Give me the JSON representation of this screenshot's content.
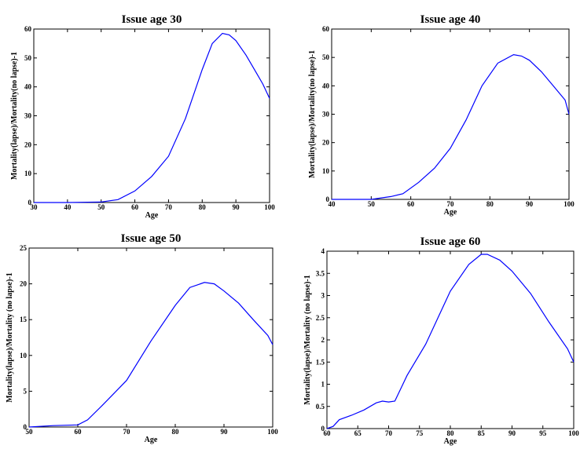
{
  "chart_data": [
    {
      "type": "line",
      "title": "Issue age 30",
      "xlabel": "Age",
      "ylabel": "Mortality(lapse)/Mortality(no lapse)-1",
      "x": [
        30,
        40,
        50,
        55,
        60,
        65,
        70,
        75,
        80,
        83,
        86,
        88,
        90,
        93,
        96,
        98,
        100
      ],
      "values": [
        0,
        0,
        0.2,
        1,
        4,
        9,
        16,
        29,
        46,
        55,
        58.5,
        58,
        56,
        51,
        45,
        41,
        36
      ],
      "color": "#0000ff",
      "xlim": [
        30,
        100
      ],
      "xticks": [
        30,
        40,
        50,
        60,
        70,
        80,
        90,
        100
      ],
      "ylim": [
        0,
        60
      ],
      "yticks": [
        0,
        10,
        20,
        30,
        40,
        50,
        60
      ]
    },
    {
      "type": "line",
      "title": "Issue age 40",
      "xlabel": "Age",
      "ylabel": "Mortality(lapse)/Mortality(no lapse)-1",
      "x": [
        40,
        50,
        55,
        58,
        62,
        66,
        70,
        74,
        78,
        82,
        86,
        88,
        90,
        93,
        96,
        99,
        100
      ],
      "values": [
        0,
        0,
        1,
        2,
        6,
        11,
        18,
        28,
        40,
        48,
        51,
        50.5,
        49,
        45,
        40,
        35,
        30
      ],
      "color": "#0000ff",
      "xlim": [
        40,
        100
      ],
      "xticks": [
        40,
        50,
        60,
        70,
        80,
        90,
        100
      ],
      "ylim": [
        0,
        60
      ],
      "yticks": [
        0,
        10,
        20,
        30,
        40,
        50,
        60
      ]
    },
    {
      "type": "line",
      "title": "Issue age 50",
      "xlabel": "Age",
      "ylabel": "Mortality(lapse)/Mortality (no lapse)-1",
      "x": [
        50,
        55,
        60,
        62,
        65,
        70,
        75,
        80,
        83,
        86,
        88,
        90,
        93,
        96,
        99,
        100
      ],
      "values": [
        0,
        0.2,
        0.3,
        1,
        3,
        6.5,
        12,
        17,
        19.5,
        20.2,
        20,
        19,
        17.3,
        15,
        12.8,
        11.5
      ],
      "color": "#0000ff",
      "xlim": [
        50,
        100
      ],
      "xticks": [
        50,
        60,
        70,
        80,
        90,
        100
      ],
      "ylim": [
        0,
        25
      ],
      "yticks": [
        0,
        5,
        10,
        15,
        20,
        25
      ]
    },
    {
      "type": "line",
      "title": "Issue age 60",
      "xlabel": "Age",
      "ylabel": "Mortality(lapse)/Mortality (no lapse)-1",
      "x": [
        60,
        61,
        62,
        64,
        66,
        68,
        69,
        70,
        71,
        73,
        76,
        80,
        83,
        85,
        86,
        88,
        90,
        93,
        96,
        99,
        100
      ],
      "values": [
        0,
        0.05,
        0.2,
        0.3,
        0.42,
        0.58,
        0.62,
        0.6,
        0.62,
        1.2,
        1.9,
        3.1,
        3.7,
        3.93,
        3.93,
        3.8,
        3.55,
        3.05,
        2.4,
        1.8,
        1.5
      ],
      "color": "#0000ff",
      "xlim": [
        60,
        100
      ],
      "xticks": [
        60,
        65,
        70,
        75,
        80,
        85,
        90,
        95,
        100
      ],
      "ylim": [
        0,
        4
      ],
      "yticks": [
        0,
        0.5,
        1,
        1.5,
        2,
        2.5,
        3,
        3.5,
        4
      ]
    }
  ]
}
